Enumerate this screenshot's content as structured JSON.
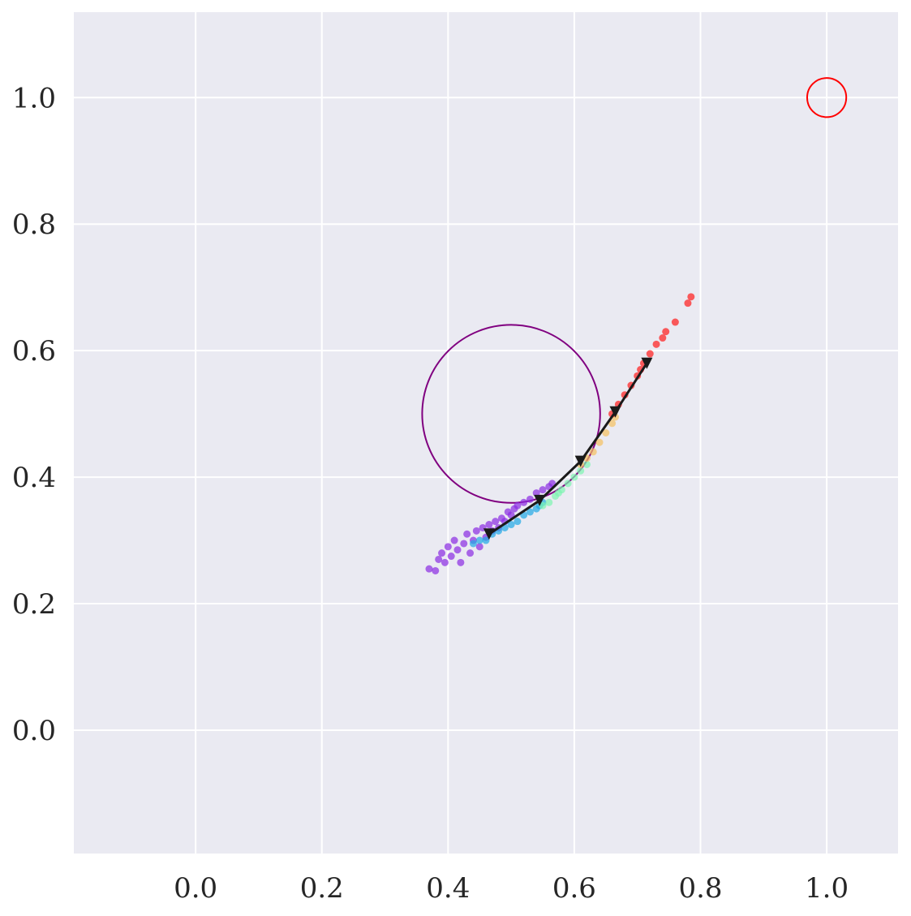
{
  "chart_data": {
    "type": "scatter",
    "title": "",
    "xlabel": "",
    "ylabel": "",
    "xlim": [
      -0.193,
      1.113
    ],
    "ylim": [
      -0.195,
      1.135
    ],
    "xticks": [
      0.0,
      0.2,
      0.4,
      0.6,
      0.8,
      1.0
    ],
    "yticks": [
      0.0,
      0.2,
      0.4,
      0.6,
      0.8,
      1.0
    ],
    "xtick_labels": [
      "0.0",
      "0.2",
      "0.4",
      "0.6",
      "0.8",
      "1.0"
    ],
    "ytick_labels": [
      "0.0",
      "0.2",
      "0.4",
      "0.6",
      "0.8",
      "1.0"
    ],
    "grid": true,
    "background_color": "#eaeaf2",
    "grid_color": "#ffffff",
    "circles": [
      {
        "name": "obstacle",
        "cx": 0.5,
        "cy": 0.5,
        "r": 0.141,
        "color": "#800080"
      },
      {
        "name": "goal",
        "cx": 1.0,
        "cy": 1.0,
        "r": 0.031,
        "color": "#ff0000"
      }
    ],
    "trajectory": {
      "color": "#1a1a1a",
      "marker": "triangle-down",
      "x": [
        0.465,
        0.545,
        0.61,
        0.665,
        0.715
      ],
      "y": [
        0.31,
        0.363,
        0.425,
        0.503,
        0.58
      ]
    },
    "scatter_clusters": [
      {
        "color": "#8a2be2",
        "points": [
          [
            0.37,
            0.255
          ],
          [
            0.38,
            0.252
          ],
          [
            0.385,
            0.27
          ],
          [
            0.39,
            0.28
          ],
          [
            0.395,
            0.265
          ],
          [
            0.4,
            0.29
          ],
          [
            0.405,
            0.275
          ],
          [
            0.41,
            0.3
          ],
          [
            0.415,
            0.285
          ],
          [
            0.42,
            0.265
          ],
          [
            0.425,
            0.295
          ],
          [
            0.43,
            0.31
          ],
          [
            0.435,
            0.28
          ],
          [
            0.44,
            0.3
          ],
          [
            0.445,
            0.315
          ],
          [
            0.45,
            0.29
          ],
          [
            0.455,
            0.32
          ],
          [
            0.46,
            0.305
          ],
          [
            0.465,
            0.325
          ],
          [
            0.47,
            0.315
          ],
          [
            0.475,
            0.33
          ],
          [
            0.48,
            0.32
          ],
          [
            0.485,
            0.335
          ],
          [
            0.49,
            0.33
          ],
          [
            0.495,
            0.345
          ],
          [
            0.5,
            0.34
          ],
          [
            0.505,
            0.35
          ],
          [
            0.51,
            0.355
          ],
          [
            0.52,
            0.36
          ],
          [
            0.53,
            0.365
          ],
          [
            0.54,
            0.375
          ],
          [
            0.55,
            0.38
          ],
          [
            0.56,
            0.385
          ],
          [
            0.565,
            0.39
          ]
        ]
      },
      {
        "color": "#1fa8e6",
        "points": [
          [
            0.44,
            0.295
          ],
          [
            0.45,
            0.3
          ],
          [
            0.46,
            0.3
          ],
          [
            0.47,
            0.31
          ],
          [
            0.48,
            0.315
          ],
          [
            0.49,
            0.32
          ],
          [
            0.5,
            0.325
          ],
          [
            0.51,
            0.33
          ],
          [
            0.52,
            0.34
          ],
          [
            0.53,
            0.345
          ],
          [
            0.54,
            0.35
          ],
          [
            0.545,
            0.355
          ],
          [
            0.55,
            0.36
          ]
        ]
      },
      {
        "color": "#7cf5b0",
        "points": [
          [
            0.55,
            0.355
          ],
          [
            0.56,
            0.36
          ],
          [
            0.57,
            0.37
          ],
          [
            0.575,
            0.375
          ],
          [
            0.58,
            0.38
          ],
          [
            0.59,
            0.39
          ],
          [
            0.6,
            0.4
          ],
          [
            0.61,
            0.41
          ],
          [
            0.62,
            0.42
          ]
        ]
      },
      {
        "color": "#f5c060",
        "points": [
          [
            0.61,
            0.42
          ],
          [
            0.62,
            0.43
          ],
          [
            0.63,
            0.44
          ],
          [
            0.64,
            0.455
          ],
          [
            0.65,
            0.47
          ],
          [
            0.66,
            0.485
          ],
          [
            0.665,
            0.495
          ]
        ]
      },
      {
        "color": "#ff1a1a",
        "points": [
          [
            0.66,
            0.5
          ],
          [
            0.67,
            0.515
          ],
          [
            0.68,
            0.53
          ],
          [
            0.69,
            0.545
          ],
          [
            0.7,
            0.56
          ],
          [
            0.705,
            0.57
          ],
          [
            0.71,
            0.58
          ],
          [
            0.72,
            0.595
          ],
          [
            0.73,
            0.61
          ],
          [
            0.74,
            0.62
          ],
          [
            0.745,
            0.63
          ],
          [
            0.76,
            0.645
          ],
          [
            0.78,
            0.675
          ],
          [
            0.785,
            0.685
          ]
        ]
      }
    ]
  }
}
